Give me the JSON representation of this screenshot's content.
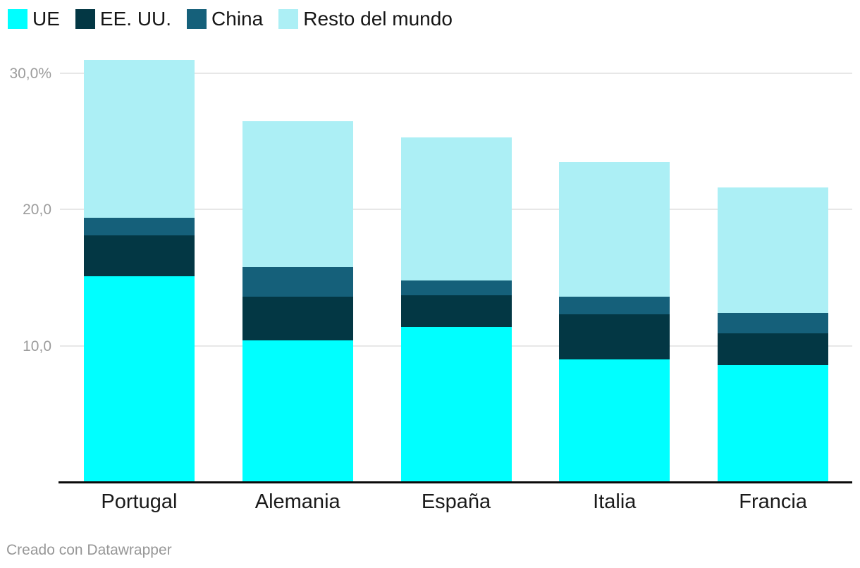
{
  "footer": {
    "credit": "Creado con Datawrapper"
  },
  "colors": {
    "ue": "#00ffff",
    "eeuu": "#033744",
    "china": "#15607a",
    "resto": "#aceff5",
    "gridline": "#e7e7e7",
    "axis_line": "#0a0a0a",
    "tick_text": "#9c9c9c",
    "category_text": "#1a1a1a",
    "credit_text": "#979797"
  },
  "chart_data": {
    "type": "bar",
    "stacked": true,
    "title": "",
    "xlabel": "",
    "ylabel": "",
    "categories": [
      "Portugal",
      "Alemania",
      "España",
      "Italia",
      "Francia"
    ],
    "series": [
      {
        "name": "UE",
        "color": "#00ffff",
        "values": [
          15.1,
          10.4,
          11.4,
          9.0,
          8.6
        ]
      },
      {
        "name": "EE. UU.",
        "color": "#033744",
        "values": [
          3.0,
          3.2,
          2.3,
          3.3,
          2.3
        ]
      },
      {
        "name": "China",
        "color": "#15607a",
        "values": [
          1.3,
          2.2,
          1.1,
          1.3,
          1.5
        ]
      },
      {
        "name": "Resto del mundo",
        "color": "#aceff5",
        "values": [
          11.6,
          10.7,
          10.5,
          9.9,
          9.2
        ]
      }
    ],
    "totals": [
      31.0,
      26.5,
      25.3,
      23.5,
      21.6
    ],
    "y_axis": {
      "unit": "%",
      "ylim": [
        0,
        31
      ],
      "ticks": [
        {
          "value": 10,
          "label": "10,0"
        },
        {
          "value": 20,
          "label": "20,0"
        },
        {
          "value": 30,
          "label": "30,0%"
        }
      ]
    },
    "grid": true,
    "legend_position": "top-left"
  }
}
